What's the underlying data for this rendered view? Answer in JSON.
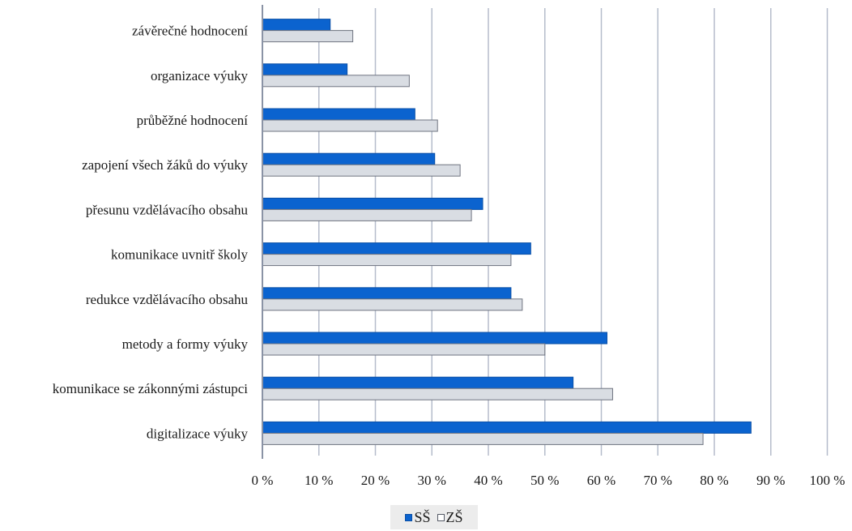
{
  "chart_data": {
    "type": "bar",
    "orientation": "horizontal",
    "categories": [
      "závěrečné hodnocení",
      "organizace výuky",
      "průběžné hodnocení",
      "zapojení všech žáků do výuky",
      "přesunu vzdělávacího obsahu",
      "komunikace uvnitř školy",
      "redukce vzdělávacího obsahu",
      "metody a formy výuky",
      "komunikace se zákonnými zástupci",
      "digitalizace výuky"
    ],
    "series": [
      {
        "name": "SŠ",
        "color": "#0b63cf",
        "values": [
          12,
          15,
          27,
          30.5,
          39,
          47.5,
          44,
          61,
          55,
          86.5
        ]
      },
      {
        "name": "ZŠ",
        "color": "#d9dde3",
        "values": [
          16,
          26,
          31,
          35,
          37,
          44,
          46,
          50,
          62,
          78
        ]
      }
    ],
    "xlim": [
      0,
      100
    ],
    "x_ticks": [
      "0 %",
      "10 %",
      "20 %",
      "30 %",
      "40 %",
      "50 %",
      "60 %",
      "70 %",
      "80 %",
      "90 %",
      "100 %"
    ],
    "grid": true,
    "legend_position": "bottom"
  }
}
